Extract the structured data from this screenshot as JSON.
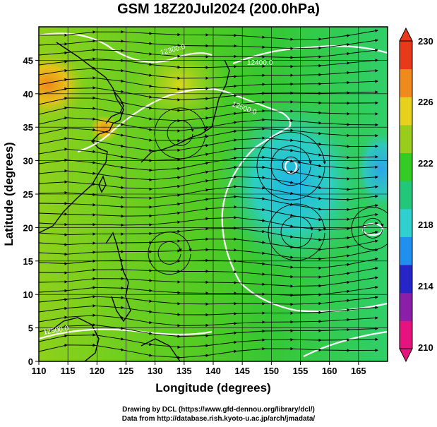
{
  "title": "GSM 18Z20Jul2024 (200.0hPa)",
  "map": {
    "xlabel": "Longitude (degrees)",
    "ylabel": "Latitude  (degrees)",
    "xticks": [
      "110",
      "115",
      "120",
      "125",
      "130",
      "135",
      "140",
      "145",
      "150",
      "155",
      "160",
      "165"
    ],
    "yticks": [
      "0",
      "5",
      "10",
      "15",
      "20",
      "25",
      "30",
      "35",
      "40",
      "45"
    ],
    "lon_range": [
      110,
      170
    ],
    "lat_range": [
      0,
      50
    ],
    "contour_labels": [
      "12300.0",
      "12400.0",
      "12500.0",
      "12500.0"
    ]
  },
  "colorbar": {
    "ticks": [
      "230",
      "226",
      "222",
      "218",
      "214",
      "210"
    ],
    "range": [
      210,
      230
    ],
    "colors": [
      "#e8127f",
      "#8b1fa8",
      "#2626c8",
      "#1f8ff0",
      "#2fd0d0",
      "#22c87a",
      "#33cc22",
      "#9acd1a",
      "#e6d21a",
      "#f08a1a",
      "#e83a1a"
    ]
  },
  "credits": {
    "line1": "Drawing by DCL (https://www.gfd-dennou.org/library/dcl/)",
    "line2": "Data from http://database.rish.kyoto-u.ac.jp/arch/jmadata/"
  }
}
